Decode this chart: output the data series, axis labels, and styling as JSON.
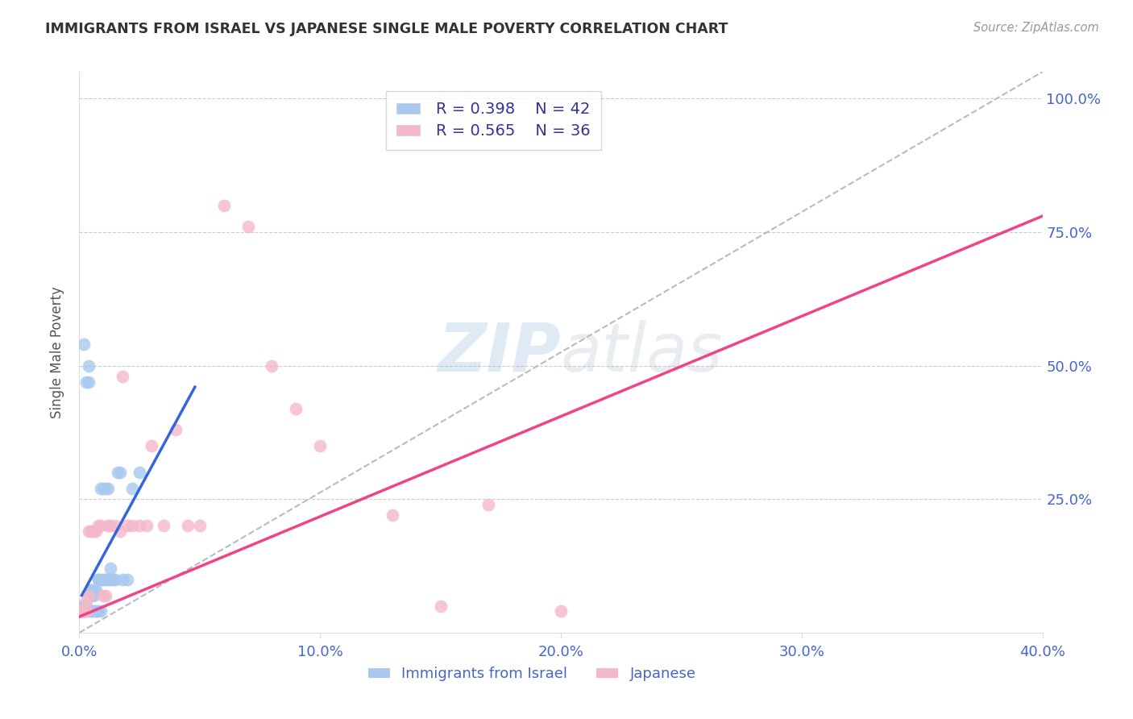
{
  "title": "IMMIGRANTS FROM ISRAEL VS JAPANESE SINGLE MALE POVERTY CORRELATION CHART",
  "source": "Source: ZipAtlas.com",
  "ylabel": "Single Male Poverty",
  "xlabel_blue": "Immigrants from Israel",
  "xlabel_pink": "Japanese",
  "xlim": [
    0.0,
    0.4
  ],
  "ylim": [
    0.0,
    1.05
  ],
  "x_ticks": [
    0.0,
    0.1,
    0.2,
    0.3,
    0.4
  ],
  "x_tick_labels": [
    "0.0%",
    "10.0%",
    "20.0%",
    "30.0%",
    "40.0%"
  ],
  "y_ticks": [
    0.25,
    0.5,
    0.75,
    1.0
  ],
  "y_tick_labels": [
    "25.0%",
    "50.0%",
    "75.0%",
    "100.0%"
  ],
  "blue_color": "#A8C8F0",
  "pink_color": "#F5B8C8",
  "blue_line_color": "#3366DD",
  "pink_line_color": "#EE4488",
  "diagonal_color": "#BBBBBB",
  "blue_scatter_x": [
    0.002,
    0.003,
    0.004,
    0.004,
    0.005,
    0.005,
    0.005,
    0.006,
    0.006,
    0.007,
    0.008,
    0.008,
    0.009,
    0.009,
    0.01,
    0.01,
    0.011,
    0.011,
    0.012,
    0.012,
    0.013,
    0.013,
    0.014,
    0.015,
    0.016,
    0.017,
    0.018,
    0.02,
    0.022,
    0.025,
    0.001,
    0.001,
    0.002,
    0.002,
    0.003,
    0.003,
    0.004,
    0.005,
    0.006,
    0.007,
    0.008,
    0.009
  ],
  "blue_scatter_y": [
    0.54,
    0.47,
    0.47,
    0.5,
    0.07,
    0.08,
    0.08,
    0.08,
    0.07,
    0.08,
    0.1,
    0.1,
    0.1,
    0.27,
    0.27,
    0.1,
    0.1,
    0.27,
    0.27,
    0.1,
    0.12,
    0.1,
    0.1,
    0.1,
    0.3,
    0.3,
    0.1,
    0.1,
    0.27,
    0.3,
    0.05,
    0.04,
    0.05,
    0.04,
    0.05,
    0.04,
    0.04,
    0.04,
    0.04,
    0.04,
    0.04,
    0.04
  ],
  "pink_scatter_x": [
    0.001,
    0.002,
    0.003,
    0.003,
    0.004,
    0.004,
    0.005,
    0.006,
    0.007,
    0.008,
    0.009,
    0.01,
    0.011,
    0.012,
    0.013,
    0.015,
    0.017,
    0.018,
    0.02,
    0.022,
    0.025,
    0.028,
    0.03,
    0.035,
    0.04,
    0.045,
    0.05,
    0.06,
    0.07,
    0.08,
    0.09,
    0.1,
    0.13,
    0.17,
    0.2,
    0.15
  ],
  "pink_scatter_y": [
    0.04,
    0.04,
    0.04,
    0.06,
    0.07,
    0.19,
    0.19,
    0.19,
    0.19,
    0.2,
    0.2,
    0.07,
    0.07,
    0.2,
    0.2,
    0.2,
    0.19,
    0.48,
    0.2,
    0.2,
    0.2,
    0.2,
    0.35,
    0.2,
    0.38,
    0.2,
    0.2,
    0.8,
    0.76,
    0.5,
    0.42,
    0.35,
    0.22,
    0.24,
    0.04,
    0.05
  ],
  "blue_line_x": [
    0.001,
    0.048
  ],
  "blue_line_y": [
    0.07,
    0.46
  ],
  "pink_line_x": [
    0.0,
    0.4
  ],
  "pink_line_y": [
    0.03,
    0.78
  ],
  "diag_line_x": [
    0.0,
    0.4
  ],
  "diag_line_y": [
    0.0,
    1.05
  ]
}
